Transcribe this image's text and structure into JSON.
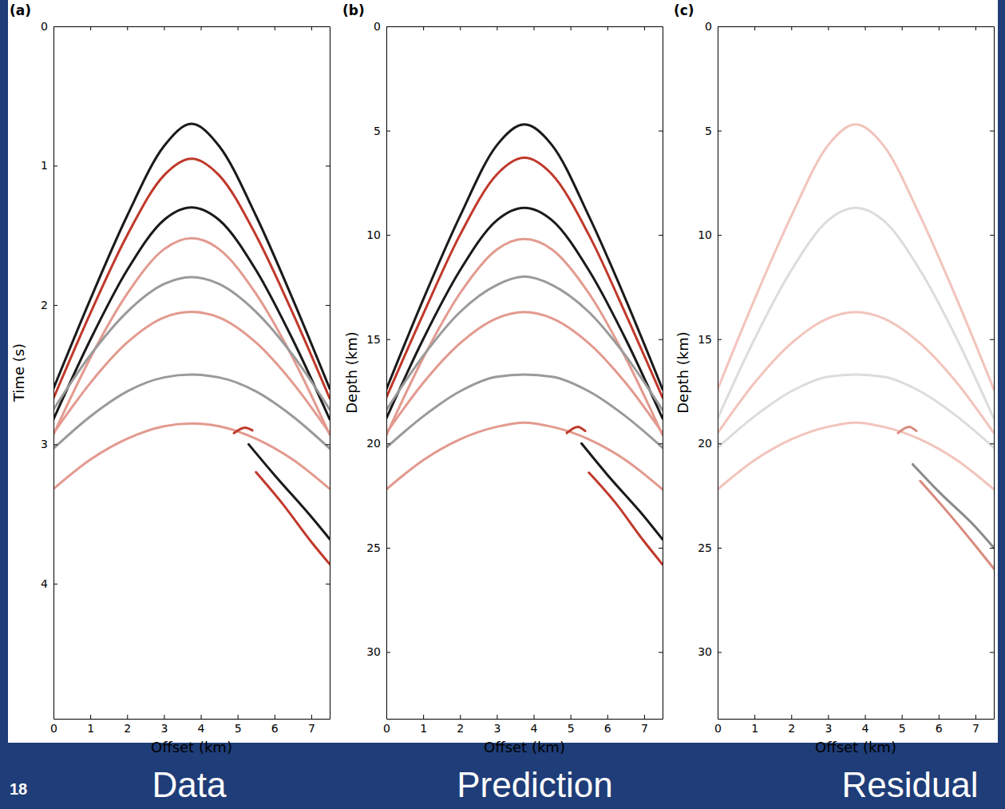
{
  "slide": {
    "number": 18
  },
  "chart_data": [
    {
      "type": "line",
      "panel_label": "(a)",
      "xlabel": "Offset (km)",
      "ylabel": "Time (s)",
      "caption": "Data",
      "xlim": [
        0,
        7.5
      ],
      "ylim": [
        0,
        4.97
      ],
      "xticks": [
        0,
        1,
        2,
        3,
        4,
        5,
        6,
        7
      ],
      "yticks": [
        0,
        1,
        2,
        3,
        4
      ],
      "series": [
        {
          "color": "#1a1a1a",
          "x": [
            0,
            1,
            2,
            3,
            3.75,
            4.5,
            5.5,
            6.5,
            7.5
          ],
          "values": [
            2.6,
            1.96,
            1.36,
            0.86,
            0.7,
            0.86,
            1.36,
            1.96,
            2.6
          ]
        },
        {
          "color": "#c0392b",
          "x": [
            0,
            1,
            2,
            3,
            3.75,
            4.5,
            5.5,
            6.5,
            7.5
          ],
          "values": [
            2.67,
            2.06,
            1.5,
            1.07,
            0.95,
            1.07,
            1.5,
            2.06,
            2.67
          ]
        },
        {
          "color": "#1a1a1a",
          "x": [
            0,
            1,
            2,
            3,
            3.75,
            4.5,
            5.5,
            6.5,
            7.5
          ],
          "values": [
            2.82,
            2.25,
            1.75,
            1.39,
            1.3,
            1.39,
            1.75,
            2.25,
            2.82
          ]
        },
        {
          "color": "#e39a8f",
          "x": [
            0,
            1,
            2,
            3,
            3.75,
            4.5,
            5.5,
            6.5,
            7.5
          ],
          "values": [
            2.93,
            2.38,
            1.92,
            1.6,
            1.52,
            1.6,
            1.92,
            2.38,
            2.93
          ]
        },
        {
          "color": "#9a9a9a",
          "x": [
            0,
            1,
            2,
            3,
            3.75,
            4.5,
            5.5,
            6.5,
            7.5
          ],
          "values": [
            2.75,
            2.36,
            2.05,
            1.85,
            1.8,
            1.85,
            2.05,
            2.36,
            2.75
          ]
        },
        {
          "color": "#e39a8f",
          "x": [
            0,
            1,
            2,
            3,
            3.75,
            4.5,
            5.5,
            6.5,
            7.5
          ],
          "values": [
            2.92,
            2.56,
            2.27,
            2.09,
            2.05,
            2.09,
            2.27,
            2.56,
            2.92
          ]
        },
        {
          "color": "#9a9a9a",
          "x": [
            0,
            1,
            2,
            3,
            3.75,
            4.5,
            5.5,
            6.5,
            7.5
          ],
          "values": [
            3.03,
            2.8,
            2.62,
            2.52,
            2.5,
            2.52,
            2.62,
            2.8,
            3.03
          ]
        },
        {
          "color": "#e39a8f",
          "x": [
            0,
            1,
            2,
            3,
            3.75,
            4.5,
            5.5,
            6.5,
            7.5
          ],
          "values": [
            3.32,
            3.11,
            2.96,
            2.87,
            2.85,
            2.87,
            2.96,
            3.11,
            3.32
          ]
        },
        {
          "color": "#1a1a1a",
          "x": [
            5.3,
            6,
            7,
            7.5
          ],
          "values": [
            3.0,
            3.22,
            3.52,
            3.68
          ]
        },
        {
          "color": "#c0392b",
          "x": [
            5.5,
            6.2,
            7,
            7.5
          ],
          "values": [
            3.2,
            3.42,
            3.7,
            3.86
          ]
        },
        {
          "color": "#c0392b",
          "x": [
            4.9,
            5.2,
            5.4
          ],
          "values": [
            2.92,
            2.88,
            2.9
          ]
        }
      ]
    },
    {
      "type": "line",
      "panel_label": "(b)",
      "xlabel": "Offset (km)",
      "ylabel": "Depth (km)",
      "caption": "Prediction",
      "xlim": [
        0,
        7.5
      ],
      "ylim": [
        0,
        33.2
      ],
      "xticks": [
        0,
        1,
        2,
        3,
        4,
        5,
        6,
        7
      ],
      "yticks": [
        0,
        5,
        10,
        15,
        20,
        25,
        30
      ],
      "series": [
        {
          "color": "#1a1a1a",
          "x": [
            0,
            1,
            2,
            3,
            3.75,
            4.5,
            5.5,
            6.5,
            7.5
          ],
          "values": [
            17.4,
            13.1,
            9.1,
            5.7,
            4.7,
            5.7,
            9.1,
            13.1,
            17.4
          ]
        },
        {
          "color": "#c0392b",
          "x": [
            0,
            1,
            2,
            3,
            3.75,
            4.5,
            5.5,
            6.5,
            7.5
          ],
          "values": [
            17.8,
            13.8,
            10.0,
            7.1,
            6.3,
            7.1,
            10.0,
            13.8,
            17.8
          ]
        },
        {
          "color": "#1a1a1a",
          "x": [
            0,
            1,
            2,
            3,
            3.75,
            4.5,
            5.5,
            6.5,
            7.5
          ],
          "values": [
            18.8,
            15.0,
            11.7,
            9.3,
            8.7,
            9.3,
            11.7,
            15.0,
            18.8
          ]
        },
        {
          "color": "#e39a8f",
          "x": [
            0,
            1,
            2,
            3,
            3.75,
            4.5,
            5.5,
            6.5,
            7.5
          ],
          "values": [
            19.6,
            15.9,
            12.8,
            10.7,
            10.2,
            10.7,
            12.8,
            15.9,
            19.6
          ]
        },
        {
          "color": "#9a9a9a",
          "x": [
            0,
            1,
            2,
            3,
            3.75,
            4.5,
            5.5,
            6.5,
            7.5
          ],
          "values": [
            18.4,
            15.8,
            13.7,
            12.4,
            12.0,
            12.4,
            13.7,
            15.8,
            18.4
          ]
        },
        {
          "color": "#e39a8f",
          "x": [
            0,
            1,
            2,
            3,
            3.75,
            4.5,
            5.5,
            6.5,
            7.5
          ],
          "values": [
            19.5,
            17.1,
            15.2,
            14.0,
            13.7,
            14.0,
            15.2,
            17.1,
            19.5
          ]
        },
        {
          "color": "#9a9a9a",
          "x": [
            0,
            1,
            2,
            3,
            3.75,
            4.5,
            5.5,
            6.5,
            7.5
          ],
          "values": [
            20.2,
            18.7,
            17.5,
            16.8,
            16.7,
            16.8,
            17.5,
            18.7,
            20.2
          ]
        },
        {
          "color": "#e39a8f",
          "x": [
            0,
            1,
            2,
            3,
            3.75,
            4.5,
            5.5,
            6.5,
            7.5
          ],
          "values": [
            22.2,
            20.8,
            19.8,
            19.2,
            19.0,
            19.2,
            19.8,
            20.8,
            22.2
          ]
        },
        {
          "color": "#1a1a1a",
          "x": [
            5.3,
            6,
            7,
            7.5
          ],
          "values": [
            20.0,
            21.5,
            23.5,
            24.6
          ]
        },
        {
          "color": "#c0392b",
          "x": [
            5.5,
            6.2,
            7,
            7.5
          ],
          "values": [
            21.4,
            22.8,
            24.7,
            25.8
          ]
        },
        {
          "color": "#c0392b",
          "x": [
            4.9,
            5.2,
            5.4
          ],
          "values": [
            19.5,
            19.2,
            19.4
          ]
        }
      ]
    },
    {
      "type": "line",
      "panel_label": "(c)",
      "xlabel": "Offset (km)",
      "ylabel": "Depth (km)",
      "caption": "Residual",
      "xlim": [
        0,
        7.5
      ],
      "ylim": [
        0,
        33.2
      ],
      "xticks": [
        0,
        1,
        2,
        3,
        4,
        5,
        6,
        7
      ],
      "yticks": [
        0,
        5,
        10,
        15,
        20,
        25,
        30
      ],
      "series": [
        {
          "color": "#f2c4bc",
          "x": [
            0,
            1,
            2,
            3,
            3.75,
            4.5,
            5.5,
            6.5,
            7.5
          ],
          "values": [
            17.4,
            13.1,
            9.1,
            5.7,
            4.7,
            5.7,
            9.1,
            13.1,
            17.4
          ]
        },
        {
          "color": "#dcdcdc",
          "x": [
            0,
            1,
            2,
            3,
            3.75,
            4.5,
            5.5,
            6.5,
            7.5
          ],
          "values": [
            18.8,
            15.0,
            11.7,
            9.3,
            8.7,
            9.3,
            11.7,
            15.0,
            18.8
          ]
        },
        {
          "color": "#f2c4bc",
          "x": [
            0,
            1,
            2,
            3,
            3.75,
            4.5,
            5.5,
            6.5,
            7.5
          ],
          "values": [
            19.5,
            17.1,
            15.2,
            14.0,
            13.7,
            14.0,
            15.2,
            17.1,
            19.5
          ]
        },
        {
          "color": "#dcdcdc",
          "x": [
            0,
            1,
            2,
            3,
            3.75,
            4.5,
            5.5,
            6.5,
            7.5
          ],
          "values": [
            20.2,
            18.7,
            17.5,
            16.8,
            16.7,
            16.8,
            17.5,
            18.7,
            20.2
          ]
        },
        {
          "color": "#f2c4bc",
          "x": [
            0,
            1,
            2,
            3,
            3.75,
            4.5,
            5.5,
            6.5,
            7.5
          ],
          "values": [
            22.2,
            20.8,
            19.8,
            19.2,
            19.0,
            19.2,
            19.8,
            20.8,
            22.2
          ]
        },
        {
          "color": "#8a8a8a",
          "x": [
            5.3,
            6,
            7,
            7.5
          ],
          "values": [
            21.0,
            22.3,
            24.0,
            25.0
          ]
        },
        {
          "color": "#d98b7f",
          "x": [
            5.5,
            6.2,
            7,
            7.5
          ],
          "values": [
            21.8,
            23.2,
            24.9,
            26.0
          ]
        },
        {
          "color": "#d98b7f",
          "x": [
            4.9,
            5.2,
            5.4
          ],
          "values": [
            19.5,
            19.2,
            19.4
          ]
        }
      ]
    }
  ]
}
